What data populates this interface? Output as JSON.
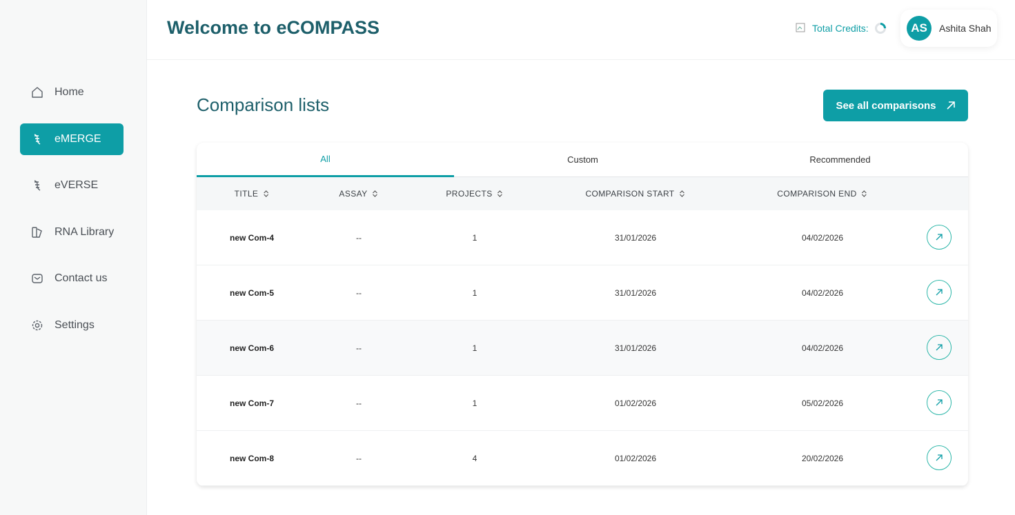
{
  "sidebar": {
    "items": [
      "Home",
      "eMERGE",
      "eVERSE",
      "RNA Library",
      "Contact us",
      "Settings"
    ]
  },
  "header": {
    "title": "Welcome to eCOMPASS",
    "credits_label": "Total Credits:",
    "avatar": "AS",
    "user": "Ashita Shah"
  },
  "main": {
    "title": "Comparison lists",
    "button": "See all comparisons"
  },
  "tabs": [
    "All",
    "Custom",
    "Recommended"
  ],
  "table": {
    "columns": [
      "TITLE",
      "ASSAY",
      "PROJECTS",
      "COMPARISON START",
      "COMPARISON END"
    ],
    "rows": [
      [
        "new Com-4",
        "--",
        "1",
        "31/01/2026",
        "04/02/2026"
      ],
      [
        "new Com-5",
        "--",
        "1",
        "31/01/2026",
        "04/02/2026"
      ],
      [
        "new Com-6",
        "--",
        "1",
        "31/01/2026",
        "04/02/2026"
      ],
      [
        "new Com-7",
        "--",
        "1",
        "01/02/2026",
        "05/02/2026"
      ],
      [
        "new Com-8",
        "--",
        "4",
        "01/02/2026",
        "20/02/2026"
      ]
    ]
  }
}
